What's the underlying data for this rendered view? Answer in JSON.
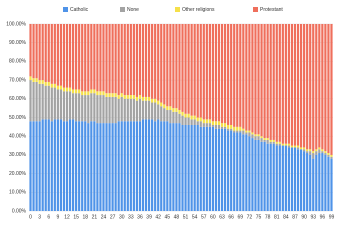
{
  "chart_data": {
    "type": "stacked_bar",
    "categories": [
      "0",
      null,
      null,
      "3",
      null,
      null,
      "6",
      null,
      null,
      "9",
      null,
      null,
      "12",
      null,
      null,
      "15",
      null,
      null,
      "18",
      null,
      null,
      "21",
      null,
      null,
      "24",
      null,
      null,
      "27",
      null,
      null,
      "30",
      null,
      null,
      "33",
      null,
      null,
      "36",
      null,
      null,
      "39",
      null,
      null,
      "42",
      null,
      null,
      "45",
      null,
      null,
      "48",
      null,
      null,
      "51",
      null,
      null,
      "54",
      null,
      null,
      "57",
      null,
      null,
      "60",
      null,
      null,
      "63",
      null,
      null,
      "66",
      null,
      null,
      "69",
      null,
      null,
      "72",
      null,
      null,
      "75",
      null,
      null,
      "78",
      null,
      null,
      "81",
      null,
      null,
      "84",
      null,
      null,
      "87",
      null,
      null,
      "90",
      null,
      null,
      "93",
      null,
      null,
      "96",
      null,
      null,
      "99"
    ],
    "series": [
      {
        "name": "Catholic",
        "color": "#4f93e8",
        "values": [
          48,
          48,
          48,
          48,
          49,
          49,
          49,
          48,
          49,
          49,
          49,
          48,
          48,
          49,
          49,
          48,
          48,
          48,
          48,
          47,
          48,
          48,
          47,
          47,
          47,
          47,
          47,
          47,
          47,
          48,
          48,
          48,
          48,
          48,
          48,
          48,
          48,
          49,
          49,
          49,
          49,
          48,
          49,
          48,
          48,
          48,
          47,
          47,
          47,
          47,
          46,
          46,
          46,
          46,
          46,
          46,
          45,
          45,
          45,
          45,
          45,
          44,
          44,
          44,
          44,
          43,
          43,
          42,
          42,
          42,
          41,
          41,
          40,
          39,
          38,
          38,
          37,
          37,
          36,
          36,
          36,
          35,
          35,
          35,
          35,
          34,
          34,
          34,
          33,
          33,
          32,
          31,
          30,
          28,
          30,
          31,
          31,
          30,
          29,
          28
        ]
      },
      {
        "name": "None",
        "color": "#a3a3a3",
        "values": [
          22,
          21,
          21,
          20,
          19,
          18,
          18,
          18,
          17,
          16,
          16,
          16,
          16,
          15,
          14,
          15,
          15,
          14,
          14,
          15,
          15,
          15,
          15,
          15,
          15,
          14,
          14,
          14,
          14,
          12,
          13,
          12,
          12,
          12,
          12,
          11,
          12,
          10,
          10,
          10,
          9,
          10,
          8,
          8,
          7,
          6,
          7,
          6,
          6,
          5,
          5,
          4,
          4,
          3,
          3,
          2,
          3,
          2,
          2,
          2,
          1,
          2,
          2,
          1,
          1,
          1,
          1,
          1,
          1,
          1,
          2,
          1,
          2,
          2,
          2,
          2,
          2,
          1,
          2,
          1,
          1,
          1,
          1,
          0,
          0,
          1,
          0,
          0,
          1,
          0,
          1,
          1,
          2,
          3,
          2,
          2,
          1,
          1,
          1,
          1
        ]
      },
      {
        "name": "Other religions",
        "color": "#f5e04a",
        "values": [
          2,
          2,
          2,
          2,
          2,
          2,
          2,
          2,
          2,
          2,
          2,
          2,
          2,
          2,
          2,
          2,
          2,
          2,
          2,
          2,
          2,
          2,
          2,
          2,
          2,
          2,
          2,
          2,
          2,
          2,
          2,
          2,
          2,
          2,
          2,
          2,
          2,
          2,
          2,
          2,
          2,
          2,
          2,
          2,
          2,
          2,
          2,
          2,
          2,
          2,
          2,
          2,
          2,
          2,
          2,
          2,
          2,
          2,
          2,
          2,
          2,
          2,
          2,
          2,
          2,
          2,
          2,
          2,
          2,
          2,
          1,
          1,
          1,
          1,
          1,
          1,
          1,
          1,
          1,
          1,
          1,
          1,
          1,
          1,
          1,
          1,
          1,
          1,
          1,
          1,
          1,
          1,
          1,
          1,
          1,
          1,
          1,
          1,
          1,
          1
        ]
      },
      {
        "name": "Protestant",
        "color": "#ef6f5c",
        "values": [
          28,
          29,
          29,
          30,
          30,
          31,
          31,
          32,
          32,
          33,
          33,
          34,
          34,
          34,
          35,
          35,
          35,
          36,
          36,
          36,
          35,
          35,
          36,
          36,
          36,
          37,
          37,
          37,
          37,
          38,
          37,
          38,
          38,
          38,
          38,
          39,
          38,
          39,
          39,
          39,
          40,
          40,
          41,
          42,
          43,
          44,
          44,
          45,
          45,
          46,
          47,
          48,
          48,
          49,
          49,
          50,
          50,
          51,
          51,
          51,
          52,
          52,
          52,
          53,
          53,
          54,
          54,
          55,
          55,
          55,
          56,
          57,
          57,
          58,
          59,
          59,
          60,
          61,
          61,
          62,
          62,
          63,
          63,
          64,
          64,
          64,
          65,
          65,
          65,
          66,
          66,
          67,
          67,
          68,
          67,
          66,
          67,
          68,
          69,
          70
        ]
      }
    ],
    "ylim": [
      0,
      100
    ],
    "yticks": [
      {
        "value": 0,
        "label": "0.00%"
      },
      {
        "value": 10,
        "label": "10.00%"
      },
      {
        "value": 20,
        "label": "20.00%"
      },
      {
        "value": 30,
        "label": "30.00%"
      },
      {
        "value": 40,
        "label": "40.00%"
      },
      {
        "value": 50,
        "label": "50.00%"
      },
      {
        "value": 60,
        "label": "60.00%"
      },
      {
        "value": 70,
        "label": "70.00%"
      },
      {
        "value": 80,
        "label": "80.00%"
      },
      {
        "value": 90,
        "label": "90.00%"
      },
      {
        "value": 100,
        "label": "100.00%"
      }
    ],
    "grid": true,
    "legend": "top"
  }
}
